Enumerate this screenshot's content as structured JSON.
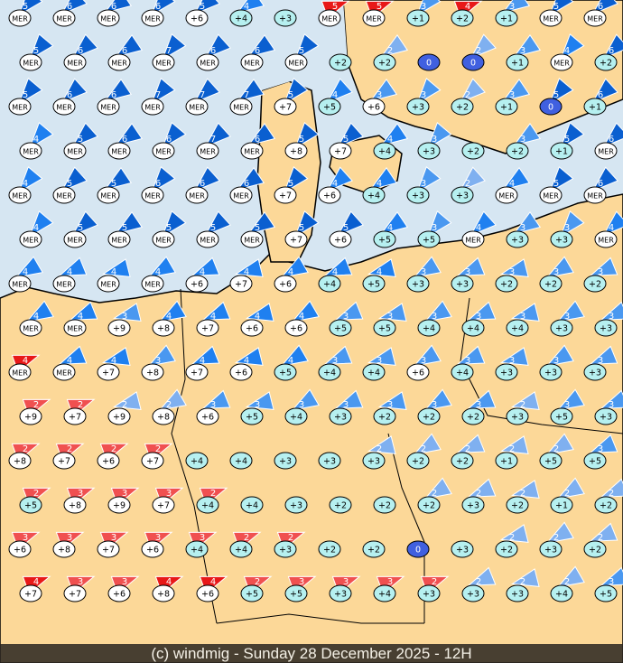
{
  "footer": {
    "caption": "(c) windmig - Sunday 28 December 2025 - 12H"
  },
  "colors": {
    "sea": "#d6e6f2",
    "land": "#fcd898",
    "border": "#000000",
    "wind_strong": "#0a5fd0",
    "wind_mid": "#1f80f0",
    "wind_low": "#4a98f0",
    "wind_light": "#7fb0f0",
    "wind_red": "#e81818",
    "wind_red_light": "#f05050",
    "temp_bubble": "#ffffff",
    "temp_bubble_mild": "#b6f0f0",
    "calm_bubble": "#4060e0"
  },
  "markers": [
    [
      [
        "MER",
        5
      ],
      [
        "MER",
        6
      ],
      [
        "MER",
        6
      ],
      [
        "MER",
        6
      ],
      [
        "+6",
        5
      ],
      [
        "+4",
        4
      ],
      [
        "+3",
        0
      ],
      [
        "MER",
        5,
        "r"
      ],
      [
        "MER",
        5,
        "r"
      ],
      [
        "+1",
        3
      ],
      [
        "+2",
        4,
        "r"
      ],
      [
        "+1",
        3
      ],
      [
        "MER",
        5
      ],
      [
        "MER",
        6
      ]
    ],
    [
      [
        "MER",
        5
      ],
      [
        "MER",
        6
      ],
      [
        "MER",
        6
      ],
      [
        "MER",
        7
      ],
      [
        "MER",
        6
      ],
      [
        "MER",
        6
      ],
      [
        "MER",
        5
      ],
      [
        "+2",
        0
      ],
      [
        "+2",
        2
      ],
      [
        "0",
        0
      ],
      [
        "0",
        2
      ],
      [
        "+1",
        3
      ],
      [
        "MER",
        4
      ],
      [
        "+2",
        6
      ]
    ],
    [
      [
        "MER",
        5
      ],
      [
        "MER",
        6
      ],
      [
        "MER",
        6
      ],
      [
        "MER",
        7
      ],
      [
        "MER",
        7
      ],
      [
        "MER",
        7
      ],
      [
        "+7",
        5
      ],
      [
        "+5",
        4
      ],
      [
        "+6",
        3
      ],
      [
        "+3",
        3
      ],
      [
        "+2",
        2
      ],
      [
        "+1",
        3
      ],
      [
        "0",
        5
      ],
      [
        "+1",
        6
      ]
    ],
    [
      [
        "MER",
        4
      ],
      [
        "MER",
        5
      ],
      [
        "MER",
        6
      ],
      [
        "MER",
        6
      ],
      [
        "MER",
        7
      ],
      [
        "MER",
        6
      ],
      [
        "+8",
        5
      ],
      [
        "+7",
        5
      ],
      [
        "+4",
        4
      ],
      [
        "+3",
        3
      ],
      [
        "+2",
        0
      ],
      [
        "+2",
        3
      ],
      [
        "+1",
        5
      ],
      [
        "MER",
        6
      ]
    ],
    [
      [
        "MER",
        4
      ],
      [
        "MER",
        5
      ],
      [
        "MER",
        5
      ],
      [
        "MER",
        6
      ],
      [
        "MER",
        6
      ],
      [
        "MER",
        6
      ],
      [
        "+7",
        5
      ],
      [
        "+6",
        4
      ],
      [
        "+4",
        4
      ],
      [
        "+3",
        3
      ],
      [
        "+3",
        2
      ],
      [
        "MER",
        4
      ],
      [
        "MER",
        5
      ],
      [
        "MER",
        6
      ]
    ],
    [
      [
        "MER",
        4
      ],
      [
        "MER",
        5
      ],
      [
        "MER",
        5
      ],
      [
        "MER",
        5
      ],
      [
        "MER",
        5
      ],
      [
        "MER",
        5
      ],
      [
        "+7",
        5
      ],
      [
        "+6",
        5
      ],
      [
        "+5",
        4
      ],
      [
        "+5",
        3
      ],
      [
        "MER",
        4
      ],
      [
        "+3",
        3
      ],
      [
        "+3",
        3
      ],
      [
        "MER",
        4
      ]
    ],
    [
      [
        "MER",
        4
      ],
      [
        "MER",
        4
      ],
      [
        "MER",
        4
      ],
      [
        "MER",
        4
      ],
      [
        "+6",
        4
      ],
      [
        "+7",
        4
      ],
      [
        "+6",
        4
      ],
      [
        "+4",
        4
      ],
      [
        "+5",
        4
      ],
      [
        "+3",
        3
      ],
      [
        "+3",
        3
      ],
      [
        "+2",
        3
      ],
      [
        "+2",
        3
      ],
      [
        "+2",
        3
      ]
    ],
    [
      [
        "MER",
        4
      ],
      [
        "MER",
        4
      ],
      [
        "+9",
        3
      ],
      [
        "+8",
        4
      ],
      [
        "+7",
        4
      ],
      [
        "+6",
        4
      ],
      [
        "+6",
        4
      ],
      [
        "+5",
        3
      ],
      [
        "+5",
        3
      ],
      [
        "+4",
        3
      ],
      [
        "+4",
        3
      ],
      [
        "+4",
        3
      ],
      [
        "+3",
        3
      ],
      [
        "+3",
        3
      ]
    ],
    [
      [
        "MER",
        4,
        "r"
      ],
      [
        "MER",
        4
      ],
      [
        "+7",
        4
      ],
      [
        "+8",
        3
      ],
      [
        "+7",
        4
      ],
      [
        "+6",
        4
      ],
      [
        "+5",
        4
      ],
      [
        "+4",
        3
      ],
      [
        "+4",
        3
      ],
      [
        "+6",
        3
      ],
      [
        "+4",
        3
      ],
      [
        "+3",
        3
      ],
      [
        "+3",
        3
      ],
      [
        "+3",
        3
      ]
    ],
    [
      [
        "+9",
        2,
        "r"
      ],
      [
        "+7",
        2,
        "r"
      ],
      [
        "+9",
        2
      ],
      [
        "+8",
        2
      ],
      [
        "+6",
        3
      ],
      [
        "+5",
        3
      ],
      [
        "+4",
        3
      ],
      [
        "+3",
        3
      ],
      [
        "+2",
        3
      ],
      [
        "+2",
        3
      ],
      [
        "+2",
        3
      ],
      [
        "+3",
        2
      ],
      [
        "+5",
        3
      ],
      [
        "+3",
        3
      ]
    ],
    [
      [
        "+8",
        2,
        "r"
      ],
      [
        "+7",
        2,
        "r"
      ],
      [
        "+6",
        2,
        "r"
      ],
      [
        "+7",
        2,
        "r"
      ],
      [
        "+4",
        0
      ],
      [
        "+4",
        0
      ],
      [
        "+3",
        0
      ],
      [
        "+3",
        0
      ],
      [
        "+3",
        2
      ],
      [
        "+2",
        2
      ],
      [
        "+2",
        2
      ],
      [
        "+1",
        2
      ],
      [
        "+5",
        2
      ],
      [
        "+5",
        3
      ]
    ],
    [
      [
        "+5",
        2,
        "r"
      ],
      [
        "+8",
        3,
        "r"
      ],
      [
        "+9",
        3,
        "r"
      ],
      [
        "+7",
        3,
        "r"
      ],
      [
        "+4",
        2,
        "r"
      ],
      [
        "+4",
        0
      ],
      [
        "+3",
        0
      ],
      [
        "+2",
        0
      ],
      [
        "+2",
        0
      ],
      [
        "+2",
        2
      ],
      [
        "+3",
        2
      ],
      [
        "+2",
        2
      ],
      [
        "+1",
        2
      ],
      [
        "+2",
        2
      ]
    ],
    [
      [
        "+6",
        3,
        "r"
      ],
      [
        "+8",
        3,
        "r"
      ],
      [
        "+7",
        3,
        "r"
      ],
      [
        "+6",
        3,
        "r"
      ],
      [
        "+4",
        3,
        "r"
      ],
      [
        "+4",
        2,
        "r"
      ],
      [
        "+3",
        2,
        "r"
      ],
      [
        "+2",
        0
      ],
      [
        "+2",
        0
      ],
      [
        "0",
        0
      ],
      [
        "+3",
        0
      ],
      [
        "+2",
        2
      ],
      [
        "+3",
        2
      ],
      [
        "+2",
        2
      ]
    ],
    [
      [
        "+7",
        4,
        "r"
      ],
      [
        "+7",
        3,
        "r"
      ],
      [
        "+6",
        3,
        "r"
      ],
      [
        "+8",
        4,
        "r"
      ],
      [
        "+6",
        4,
        "r"
      ],
      [
        "+5",
        2,
        "r"
      ],
      [
        "+5",
        3,
        "r"
      ],
      [
        "+3",
        3,
        "r"
      ],
      [
        "+4",
        3,
        "r"
      ],
      [
        "+3",
        2,
        "r"
      ],
      [
        "+3",
        2
      ],
      [
        "+3",
        2
      ],
      [
        "+4",
        2
      ],
      [
        "+5",
        3
      ]
    ]
  ]
}
